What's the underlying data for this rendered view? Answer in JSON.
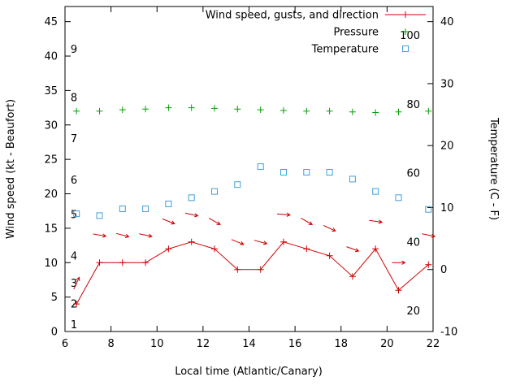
{
  "chart_data": {
    "type": "line",
    "title": "",
    "xlabel": "Local time (Atlantic/Canary)",
    "ylabel_left": "Wind speed (kt - Beaufort)",
    "ylabel_right": "Temperature (C - F)",
    "legend_position": "top-right-inside",
    "grid": false,
    "x_range": [
      6,
      22
    ],
    "x_ticks": [
      6,
      8,
      10,
      12,
      14,
      16,
      18,
      20,
      22
    ],
    "y_left_range": [
      0,
      47.2
    ],
    "y_left_ticks": [
      0,
      5,
      10,
      15,
      20,
      25,
      30,
      35,
      40,
      45
    ],
    "y_right_ticks_c": [
      -10,
      0,
      10,
      20,
      30,
      40
    ],
    "beaufort_labels": [
      {
        "label": "1",
        "kt": 1
      },
      {
        "label": "2",
        "kt": 4
      },
      {
        "label": "3",
        "kt": 7
      },
      {
        "label": "4",
        "kt": 11
      },
      {
        "label": "5",
        "kt": 17
      },
      {
        "label": "6",
        "kt": 22
      },
      {
        "label": "7",
        "kt": 28
      },
      {
        "label": "8",
        "kt": 34
      },
      {
        "label": "9",
        "kt": 41
      }
    ],
    "fahrenheit_labels": [
      20,
      40,
      60,
      80,
      100
    ],
    "x": [
      6.5,
      7.5,
      8.5,
      9.5,
      10.5,
      11.5,
      12.5,
      13.5,
      14.5,
      15.5,
      16.5,
      17.5,
      18.5,
      19.5,
      20.5,
      21.8
    ],
    "series": [
      {
        "name": "Wind speed, gusts, and direction",
        "type": "linespoints",
        "marker": "plus",
        "color": "#d00000",
        "axis": "left",
        "unit": "kt",
        "values": [
          4,
          10,
          10,
          10,
          12,
          13,
          12,
          9,
          9,
          13,
          12,
          11,
          8,
          12,
          6,
          9.7
        ]
      },
      {
        "name": "Pressure",
        "type": "points",
        "marker": "plus",
        "color": "#00a000",
        "axis": "left",
        "unit": "plot-units",
        "values": [
          32,
          32,
          32.2,
          32.3,
          32.5,
          32.5,
          32.4,
          32.3,
          32.2,
          32.1,
          32,
          32,
          31.9,
          31.8,
          31.9,
          32
        ]
      },
      {
        "name": "Temperature",
        "type": "points",
        "marker": "square-open",
        "color": "#3fa0d8",
        "axis": "right_celsius",
        "unit": "C",
        "values": [
          9.0,
          8.7,
          9.8,
          9.8,
          10.6,
          11.6,
          12.6,
          13.7,
          16.6,
          15.7,
          15.7,
          15.7,
          14.6,
          12.6,
          11.6,
          9.7
        ]
      }
    ],
    "gust_arrows": [
      {
        "x": 6.5,
        "kt": 7,
        "angle_deg": -65
      },
      {
        "x": 7.5,
        "kt": 14,
        "angle_deg": 10
      },
      {
        "x": 8.5,
        "kt": 14,
        "angle_deg": 15
      },
      {
        "x": 9.5,
        "kt": 14,
        "angle_deg": 12
      },
      {
        "x": 10.5,
        "kt": 16,
        "angle_deg": 22
      },
      {
        "x": 11.5,
        "kt": 17,
        "angle_deg": 12
      },
      {
        "x": 12.5,
        "kt": 16,
        "angle_deg": 30
      },
      {
        "x": 13.5,
        "kt": 13,
        "angle_deg": 22
      },
      {
        "x": 14.5,
        "kt": 13,
        "angle_deg": 15
      },
      {
        "x": 15.5,
        "kt": 17,
        "angle_deg": 5
      },
      {
        "x": 16.5,
        "kt": 16,
        "angle_deg": 30
      },
      {
        "x": 17.5,
        "kt": 15,
        "angle_deg": 25
      },
      {
        "x": 18.5,
        "kt": 12,
        "angle_deg": 20
      },
      {
        "x": 19.5,
        "kt": 16,
        "angle_deg": 8
      },
      {
        "x": 20.5,
        "kt": 10,
        "angle_deg": 0
      },
      {
        "x": 21.8,
        "kt": 14,
        "angle_deg": 12
      }
    ],
    "colors": {
      "border": "#000000",
      "background": "#ffffff",
      "wind": "#d00000",
      "pressure": "#00a000",
      "temperature": "#3fa0d8"
    }
  }
}
